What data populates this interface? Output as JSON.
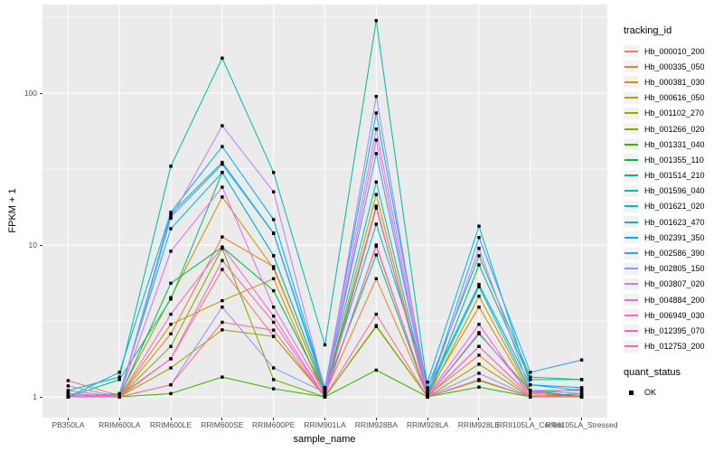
{
  "theme": {
    "panel_bg": "#EBEBEB",
    "grid_color": "#FFFFFF",
    "marker_color": "#000000",
    "tick_label_color": "#4D4D4D",
    "legend_key_bg": "#F2F2F2"
  },
  "chart_data": {
    "type": "line",
    "title": "",
    "xlabel": "sample_name",
    "ylabel": "FPKM + 1",
    "y_scale": "log10",
    "ylim": [
      0.7,
      380
    ],
    "grid": true,
    "legend_position": "right",
    "x_categories": [
      "PB350LA",
      "RRIM600LA",
      "RRIM600LE",
      "RRIM600SE",
      "RRIM600PE",
      "RRIM901LA",
      "RRIM928BA",
      "RRIM928LA",
      "RRIM928LE",
      "RRII105LA_Control",
      "RRII105LA_Stressed"
    ],
    "y_ticks": [
      {
        "value": 1,
        "label": "1"
      },
      {
        "value": 10,
        "label": "10"
      },
      {
        "value": 100,
        "label": "100"
      }
    ],
    "legend": {
      "color_title": "tracking_id",
      "shape_title": "quant_status",
      "shape_entries": [
        {
          "label": "OK"
        }
      ]
    },
    "series": [
      {
        "name": "Hb_000010_200",
        "color": "#F8766D",
        "quant_status": "OK",
        "values": [
          1.28,
          1.02,
          1.78,
          6.9,
          2.5,
          1.02,
          9.8,
          1.0,
          2.15,
          1.02,
          1.0
        ]
      },
      {
        "name": "Hb_000335_050",
        "color": "#EA8331",
        "quant_status": "OK",
        "values": [
          1.0,
          1.0,
          2.6,
          11.3,
          7.2,
          1.05,
          6.0,
          1.02,
          1.88,
          1.0,
          1.05
        ]
      },
      {
        "name": "Hb_000381_030",
        "color": "#D89000",
        "quant_status": "OK",
        "values": [
          1.05,
          1.0,
          3.0,
          4.3,
          6.0,
          1.0,
          17.5,
          1.06,
          3.9,
          1.05,
          1.0
        ]
      },
      {
        "name": "Hb_000616_050",
        "color": "#C09B00",
        "quant_status": "OK",
        "values": [
          1.0,
          1.03,
          4.5,
          20.7,
          7.0,
          1.08,
          21.5,
          1.0,
          4.6,
          1.08,
          1.0
        ]
      },
      {
        "name": "Hb_001102_270",
        "color": "#A3A500",
        "quant_status": "OK",
        "values": [
          1.02,
          1.0,
          1.55,
          2.76,
          2.5,
          1.0,
          2.95,
          1.0,
          1.64,
          1.0,
          1.02
        ]
      },
      {
        "name": "Hb_001266_020",
        "color": "#7CAE00",
        "quant_status": "OK",
        "values": [
          1.0,
          1.0,
          2.15,
          9.5,
          1.3,
          1.0,
          2.9,
          1.0,
          1.28,
          1.0,
          1.0
        ]
      },
      {
        "name": "Hb_001331_040",
        "color": "#39B600",
        "quant_status": "OK",
        "values": [
          1.0,
          1.0,
          1.05,
          1.35,
          1.13,
          1.0,
          1.5,
          1.0,
          1.16,
          1.0,
          1.05
        ]
      },
      {
        "name": "Hb_001355_110",
        "color": "#00BB4E",
        "quant_status": "OK",
        "values": [
          1.0,
          1.0,
          5.6,
          9.7,
          5.0,
          1.08,
          18.0,
          1.0,
          2.6,
          1.1,
          1.0
        ]
      },
      {
        "name": "Hb_001514_210",
        "color": "#00BF7D",
        "quant_status": "OK",
        "values": [
          1.0,
          1.3,
          4.4,
          30.0,
          8.5,
          1.1,
          8.6,
          1.0,
          7.4,
          1.3,
          1.3
        ]
      },
      {
        "name": "Hb_001596_040",
        "color": "#00C1A3",
        "quant_status": "OK",
        "values": [
          1.1,
          1.35,
          33.0,
          170.0,
          30.0,
          2.2,
          300.0,
          1.15,
          8.5,
          1.35,
          1.3
        ]
      },
      {
        "name": "Hb_001621_020",
        "color": "#00BFC4",
        "quant_status": "OK",
        "values": [
          1.05,
          1.0,
          16.0,
          35.0,
          12.0,
          1.15,
          26.0,
          1.05,
          5.3,
          1.1,
          1.1
        ]
      },
      {
        "name": "Hb_001623_470",
        "color": "#00BAE0",
        "quant_status": "OK",
        "values": [
          1.0,
          1.05,
          12.8,
          30.0,
          8.5,
          1.1,
          13.7,
          1.25,
          13.3,
          1.2,
          1.1
        ]
      },
      {
        "name": "Hb_002391_350",
        "color": "#00B0F6",
        "quant_status": "OK",
        "values": [
          1.0,
          1.45,
          16.4,
          44.5,
          14.7,
          1.15,
          74.0,
          1.1,
          5.5,
          1.2,
          1.15
        ]
      },
      {
        "name": "Hb_002586_390",
        "color": "#35A2FF",
        "quant_status": "OK",
        "values": [
          1.05,
          1.0,
          15.3,
          34.0,
          11.9,
          1.1,
          40.0,
          1.05,
          11.2,
          1.45,
          1.75
        ]
      },
      {
        "name": "Hb_002805_150",
        "color": "#9590FF",
        "quant_status": "OK",
        "values": [
          1.18,
          1.0,
          1.2,
          3.9,
          1.55,
          1.07,
          95.0,
          1.0,
          1.43,
          1.0,
          1.0
        ]
      },
      {
        "name": "Hb_003807_020",
        "color": "#C77CFF",
        "quant_status": "OK",
        "values": [
          1.05,
          1.0,
          15.0,
          61.0,
          22.4,
          1.1,
          58.0,
          1.05,
          9.5,
          1.1,
          1.05
        ]
      },
      {
        "name": "Hb_004884_200",
        "color": "#E76BF3",
        "quant_status": "OK",
        "values": [
          1.0,
          1.02,
          9.1,
          24.0,
          3.9,
          1.05,
          49.0,
          1.0,
          2.65,
          1.05,
          1.13
        ]
      },
      {
        "name": "Hb_006949_030",
        "color": "#FA62DB",
        "quant_status": "OK",
        "values": [
          1.0,
          1.0,
          3.5,
          9.7,
          3.4,
          1.0,
          18.0,
          1.02,
          3.0,
          1.0,
          1.0
        ]
      },
      {
        "name": "Hb_012395_070",
        "color": "#FF62BC",
        "quant_status": "OK",
        "values": [
          1.02,
          1.0,
          1.78,
          7.9,
          3.1,
          1.0,
          10.0,
          1.0,
          2.15,
          1.02,
          1.0
        ]
      },
      {
        "name": "Hb_012753_200",
        "color": "#FF6A98",
        "quant_status": "OK",
        "values": [
          1.1,
          1.0,
          1.2,
          3.1,
          2.75,
          1.0,
          3.5,
          1.0,
          1.3,
          1.0,
          1.0
        ]
      }
    ]
  }
}
